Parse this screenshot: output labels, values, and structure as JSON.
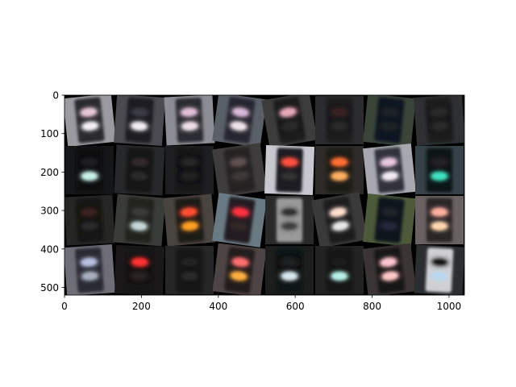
{
  "chart_data": {
    "type": "image",
    "title": "",
    "xlabel": "",
    "ylabel": "",
    "xlim": [
      0,
      1040
    ],
    "ylim": [
      520,
      0
    ],
    "x_ticks": [
      0,
      200,
      400,
      600,
      800,
      1000
    ],
    "y_ticks": [
      0,
      100,
      200,
      300,
      400,
      500
    ],
    "grid": {
      "rows": 4,
      "cols": 8,
      "tile_size": 130
    },
    "tiles": [
      {
        "bg": "#9a9aa0",
        "housing": "#2a2a2e",
        "lights": [
          "#e8c8d8",
          "#f4f0f4"
        ],
        "tilt": -6
      },
      {
        "bg": "#4a4a50",
        "housing": "#1c1c22",
        "lights": [
          "#3a3a44",
          "#f2eef2"
        ],
        "tilt": 4
      },
      {
        "bg": "#8c8c94",
        "housing": "#2c2c30",
        "lights": [
          "#e0c0d8",
          "#f0e0e8"
        ],
        "tilt": -3
      },
      {
        "bg": "#5a6068",
        "housing": "#262630",
        "lights": [
          "#d8b8d8",
          "#f0e4ea"
        ],
        "tilt": 8
      },
      {
        "bg": "#3c3c3c",
        "housing": "#1a1a1a",
        "lights": [
          "#e8a8b8",
          "#2a2a2a"
        ],
        "tilt": -10
      },
      {
        "bg": "#2a2c2e",
        "housing": "#1a1a1c",
        "lights": [
          "#3a2020",
          "#2a2a2a"
        ],
        "tilt": 0
      },
      {
        "bg": "#3a4438",
        "housing": "#101820",
        "lights": [
          "#1a2028",
          "#1a2028"
        ],
        "tilt": 6
      },
      {
        "bg": "#2e3032",
        "housing": "#1a1a1c",
        "lights": [
          "#2a2a2a",
          "#2a2a2a"
        ],
        "tilt": -4
      },
      {
        "bg": "#141618",
        "housing": "#0e0e10",
        "lights": [
          "#1e1e20",
          "#c8f0ea"
        ],
        "tilt": 0
      },
      {
        "bg": "#26282a",
        "housing": "#141416",
        "lights": [
          "#302a2a",
          "#2a2a2a"
        ],
        "tilt": 3
      },
      {
        "bg": "#1c1e20",
        "housing": "#121214",
        "lights": [
          "#282828",
          "#222222"
        ],
        "tilt": 0
      },
      {
        "bg": "#3e3c3c",
        "housing": "#262424",
        "lights": [
          "#605050",
          "#403838"
        ],
        "tilt": -8
      },
      {
        "bg": "#c8c8d0",
        "housing": "#1c1c20",
        "lights": [
          "#ff5040",
          "#303030"
        ],
        "tilt": 2
      },
      {
        "bg": "#2e2c28",
        "housing": "#1c1a18",
        "lights": [
          "#ff7030",
          "#ffb060"
        ],
        "tilt": 0
      },
      {
        "bg": "#a8a8b0",
        "housing": "#30303a",
        "lights": [
          "#e8c8e0",
          "#f4ecf4"
        ],
        "tilt": -6
      },
      {
        "bg": "#36424a",
        "housing": "#101418",
        "lights": [
          "#202428",
          "#40e0c0"
        ],
        "tilt": 0
      },
      {
        "bg": "#262624",
        "housing": "#141412",
        "lights": [
          "#3a2020",
          "#2a2a2a"
        ],
        "tilt": -3
      },
      {
        "bg": "#3a3c38",
        "housing": "#22241e",
        "lights": [
          "#3a3a38",
          "#c8d8d8"
        ],
        "tilt": 5
      },
      {
        "bg": "#4a4440",
        "housing": "#1e1a18",
        "lights": [
          "#ff5030",
          "#ffa020"
        ],
        "tilt": -5
      },
      {
        "bg": "#6a7a82",
        "housing": "#241e24",
        "lights": [
          "#ff3040",
          "#302828"
        ],
        "tilt": 8
      },
      {
        "bg": "#2a2a2a",
        "housing": "#9a9a9a",
        "lights": [
          "#303030",
          "#404040"
        ],
        "tilt": 0
      },
      {
        "bg": "#3a3a3a",
        "housing": "#1c1c1e",
        "lights": [
          "#ffe0d0",
          "#e8e8e8"
        ],
        "tilt": -10
      },
      {
        "bg": "#4c5a3a",
        "housing": "#10161e",
        "lights": [
          "#1a2028",
          "#202838"
        ],
        "tilt": 6
      },
      {
        "bg": "#6a6262",
        "housing": "#2a2628",
        "lights": [
          "#ffb0a0",
          "#ffd8b0"
        ],
        "tilt": 0
      },
      {
        "bg": "#6e6e78",
        "housing": "#2a2a34",
        "lights": [
          "#b8c0e0",
          "#a8b0c0"
        ],
        "tilt": -4
      },
      {
        "bg": "#1a1818",
        "housing": "#141212",
        "lights": [
          "#ff3030",
          "#2a2020"
        ],
        "tilt": 2
      },
      {
        "bg": "#262626",
        "housing": "#161616",
        "lights": [
          "#222222",
          "#2a2a2a"
        ],
        "tilt": 0
      },
      {
        "bg": "#4e4444",
        "housing": "#201c1c",
        "lights": [
          "#ff7070",
          "#ffb040"
        ],
        "tilt": 7
      },
      {
        "bg": "#1c1e1e",
        "housing": "#101212",
        "lights": [
          "#1e2020",
          "#d8e8f0"
        ],
        "tilt": 0
      },
      {
        "bg": "#222222",
        "housing": "#141414",
        "lights": [
          "#1e1e1e",
          "#b8f0e8"
        ],
        "tilt": 0
      },
      {
        "bg": "#3a3434",
        "housing": "#181414",
        "lights": [
          "#ffc8d0",
          "#ffc8c8"
        ],
        "tilt": -7
      },
      {
        "bg": "#2a2e30",
        "housing": "#d0d0d4",
        "lights": [
          "#141414",
          "#b8d8f0"
        ],
        "tilt": 3
      }
    ]
  }
}
